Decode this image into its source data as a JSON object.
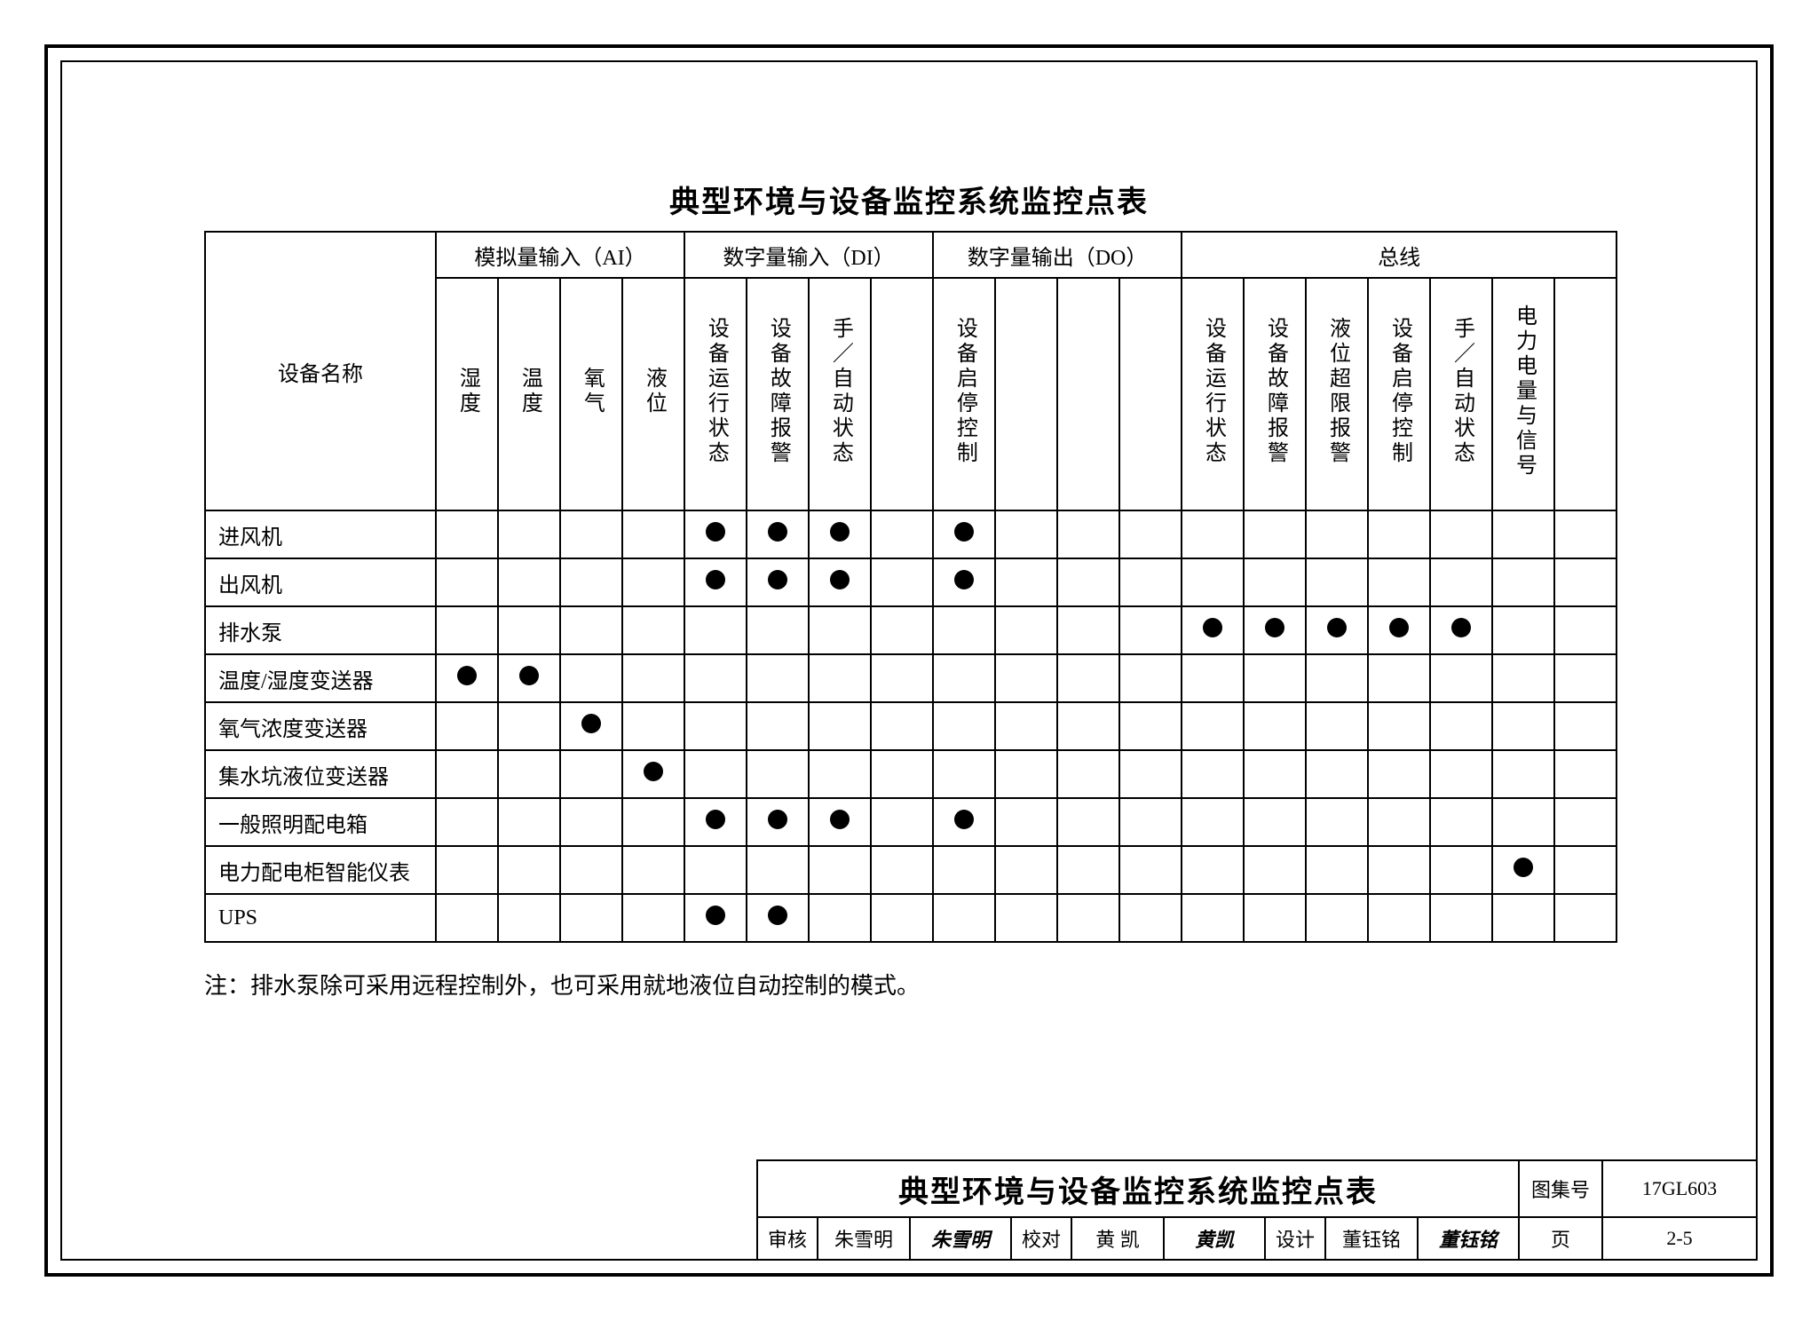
{
  "page": {
    "title": "典型环境与设备监控系统监控点表",
    "note": "注：排水泵除可采用远程控制外，也可采用就地液位自动控制的模式。"
  },
  "table": {
    "row_header": "设备名称",
    "groups": [
      {
        "label": "模拟量输入（AI）",
        "cols": 4
      },
      {
        "label": "数字量输入（DI）",
        "cols": 4
      },
      {
        "label": "数字量输出（DO）",
        "cols": 4
      },
      {
        "label": "总线",
        "cols": 7
      }
    ],
    "subheaders": [
      "湿度",
      "温度",
      "氧气",
      "液位",
      "设备运行状态",
      "设备故障报警",
      "手／自动状态",
      "",
      "设备启停控制",
      "",
      "",
      "",
      "设备运行状态",
      "设备故障报警",
      "液位超限报警",
      "设备启停控制",
      "手／自动状态",
      "电力电量与信号",
      ""
    ],
    "rows": [
      {
        "name": "进风机",
        "cells": [
          0,
          0,
          0,
          0,
          1,
          1,
          1,
          0,
          1,
          0,
          0,
          0,
          0,
          0,
          0,
          0,
          0,
          0,
          0
        ]
      },
      {
        "name": "出风机",
        "cells": [
          0,
          0,
          0,
          0,
          1,
          1,
          1,
          0,
          1,
          0,
          0,
          0,
          0,
          0,
          0,
          0,
          0,
          0,
          0
        ]
      },
      {
        "name": "排水泵",
        "cells": [
          0,
          0,
          0,
          0,
          0,
          0,
          0,
          0,
          0,
          0,
          0,
          0,
          1,
          1,
          1,
          1,
          1,
          0,
          0
        ]
      },
      {
        "name": "温度/湿度变送器",
        "cells": [
          1,
          1,
          0,
          0,
          0,
          0,
          0,
          0,
          0,
          0,
          0,
          0,
          0,
          0,
          0,
          0,
          0,
          0,
          0
        ]
      },
      {
        "name": "氧气浓度变送器",
        "cells": [
          0,
          0,
          1,
          0,
          0,
          0,
          0,
          0,
          0,
          0,
          0,
          0,
          0,
          0,
          0,
          0,
          0,
          0,
          0
        ]
      },
      {
        "name": "集水坑液位变送器",
        "cells": [
          0,
          0,
          0,
          1,
          0,
          0,
          0,
          0,
          0,
          0,
          0,
          0,
          0,
          0,
          0,
          0,
          0,
          0,
          0
        ]
      },
      {
        "name": "一般照明配电箱",
        "cells": [
          0,
          0,
          0,
          0,
          1,
          1,
          1,
          0,
          1,
          0,
          0,
          0,
          0,
          0,
          0,
          0,
          0,
          0,
          0
        ]
      },
      {
        "name": "电力配电柜智能仪表",
        "cells": [
          0,
          0,
          0,
          0,
          0,
          0,
          0,
          0,
          0,
          0,
          0,
          0,
          0,
          0,
          0,
          0,
          0,
          1,
          0
        ]
      },
      {
        "name": "UPS",
        "cells": [
          0,
          0,
          0,
          0,
          1,
          1,
          0,
          0,
          0,
          0,
          0,
          0,
          0,
          0,
          0,
          0,
          0,
          0,
          0
        ]
      }
    ]
  },
  "titleblock": {
    "drawing_title": "典型环境与设备监控系统监控点表",
    "set_no_label": "图集号",
    "set_no": "17GL603",
    "page_label": "页",
    "page_no": "2-5",
    "review_label": "审核",
    "review_name": "朱雪明",
    "review_sig": "朱雪明",
    "check_label": "校对",
    "check_name": "黄 凯",
    "check_sig": "黄凯",
    "design_label": "设计",
    "design_name": "董钰铭",
    "design_sig": "董钰铭"
  },
  "style": {
    "dot_color": "#000000",
    "border_color": "#000000",
    "background": "#ffffff",
    "title_fontsize": 34,
    "cell_fontsize": 24,
    "note_fontsize": 26
  }
}
